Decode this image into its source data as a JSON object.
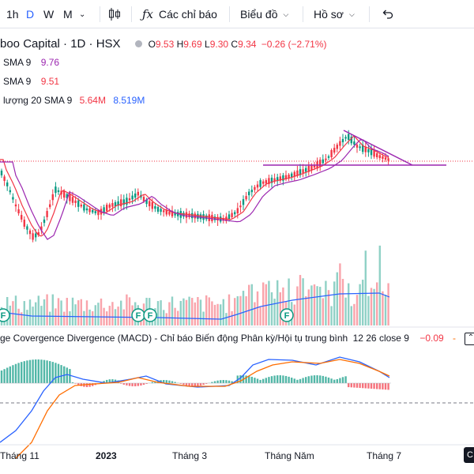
{
  "toolbar": {
    "intervals": [
      "1h",
      "D",
      "W",
      "M"
    ],
    "active_interval": "D",
    "indicators_label": "Các chỉ báo",
    "chart_type_label": "Biểu đồ",
    "profile_label": "Hồ sơ",
    "icons": [
      "chevron-down-icon",
      "candlestick-icon",
      "fx-icon",
      "undo-icon"
    ]
  },
  "legend": {
    "symbol": "boo Capital · 1D · HSX",
    "ohlc": {
      "o_key": "O",
      "o": "9.53",
      "h_key": "H",
      "h": "9.69",
      "l_key": "L",
      "l": "9.30",
      "c_key": "C",
      "c": "9.34",
      "change": "−0.26 (−2.71%)"
    },
    "sma1": {
      "label": "SMA 9",
      "value": "9.76",
      "color": "#9c27b0"
    },
    "sma2": {
      "label": "SMA 9",
      "value": "9.51",
      "color": "#9c27b0"
    },
    "volume": {
      "label": "lượng 20 SMA 9",
      "value1": "5.64M",
      "value2": "8.519M",
      "color": "#2962ff"
    }
  },
  "macd": {
    "label": "ge Covergence Divergence (MACD) - Chỉ báo Biến động Phân kỳ/Hội tụ trung bình",
    "params": "12 26 close 9",
    "value": "−0.09",
    "value2": "-",
    "macd_color": "#2962ff",
    "signal_color": "#ff6d00"
  },
  "time_axis": [
    "Tháng 11",
    "2023",
    "Tháng 3",
    "Tháng Năm",
    "Tháng 7"
  ],
  "badges": {
    "letter": "F",
    "color": "#089981"
  },
  "colors": {
    "up": "#089981",
    "down": "#f23645",
    "trendline": "#9c27b0",
    "price_line": "#f23645"
  }
}
